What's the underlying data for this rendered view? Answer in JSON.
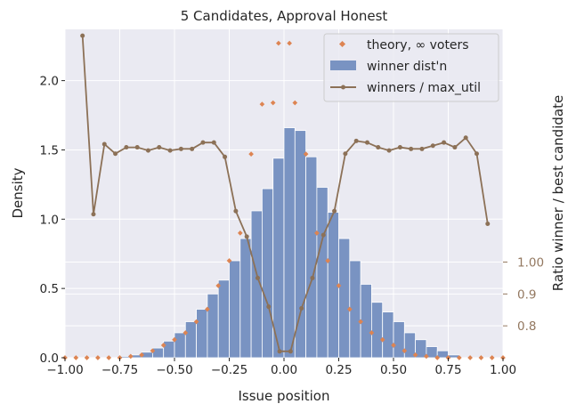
{
  "chart_data": {
    "type": "bar",
    "title": "5 Candidates, Approval Honest",
    "xlabel": "Issue position",
    "ylabel": "Density",
    "y2label": "Ratio winner / best candidate",
    "xlim": [
      -1.0,
      1.0
    ],
    "ylim": [
      0,
      2.37
    ],
    "y2lim": [
      0.7,
      1.73
    ],
    "x_ticks": [
      "−1.00",
      "−0.75",
      "−0.50",
      "−0.25",
      "0.00",
      "0.25",
      "0.50",
      "0.75",
      "1.00"
    ],
    "x_tick_values": [
      -1.0,
      -0.75,
      -0.5,
      -0.25,
      0.0,
      0.25,
      0.5,
      0.75,
      1.0
    ],
    "y_ticks": [
      "0.0",
      "0.5",
      "1.0",
      "1.5",
      "2.0"
    ],
    "y_tick_values": [
      0.0,
      0.5,
      1.0,
      1.5,
      2.0
    ],
    "y2_ticks": [
      "0.8",
      "0.9",
      "1.00"
    ],
    "y2_tick_values": [
      0.8,
      0.9,
      1.0
    ],
    "grid": true,
    "legend_position": "top-right",
    "colors": {
      "background": "#eaeaf2",
      "grid": "#ffffff",
      "bars": "#7993c2",
      "theory": "#dd8452",
      "ratio_line": "#8c7157",
      "right_axis_text": "#937860",
      "text": "#262626"
    },
    "histogram": {
      "name": "winner dist'n",
      "bin_edges": [
        -1.0,
        -0.95,
        -0.9,
        -0.85,
        -0.8,
        -0.75,
        -0.7,
        -0.65,
        -0.6,
        -0.55,
        -0.5,
        -0.45,
        -0.4,
        -0.35,
        -0.3,
        -0.25,
        -0.2,
        -0.15,
        -0.1,
        -0.05,
        0.0,
        0.05,
        0.1,
        0.15,
        0.2,
        0.25,
        0.3,
        0.35,
        0.4,
        0.45,
        0.5,
        0.55,
        0.6,
        0.65,
        0.7,
        0.75,
        0.8,
        0.85,
        0.9,
        0.95,
        1.0
      ],
      "values": [
        0.0,
        0.0,
        0.0,
        0.0,
        0.0,
        0.01,
        0.02,
        0.04,
        0.07,
        0.12,
        0.18,
        0.26,
        0.35,
        0.46,
        0.56,
        0.7,
        0.86,
        1.06,
        1.22,
        1.44,
        1.66,
        1.64,
        1.45,
        1.23,
        1.05,
        0.86,
        0.7,
        0.53,
        0.4,
        0.33,
        0.26,
        0.18,
        0.13,
        0.08,
        0.05,
        0.02,
        0.0,
        0.0,
        0.0,
        0.0
      ]
    },
    "series": [
      {
        "name": "theory, ∞ voters",
        "type": "scatter",
        "x": [
          -1.0,
          -0.95,
          -0.9,
          -0.85,
          -0.8,
          -0.75,
          -0.7,
          -0.65,
          -0.6,
          -0.55,
          -0.5,
          -0.45,
          -0.4,
          -0.35,
          -0.3,
          -0.25,
          -0.2,
          -0.15,
          -0.1,
          -0.05,
          -0.025,
          0.025,
          0.05,
          0.1,
          0.15,
          0.2,
          0.25,
          0.3,
          0.35,
          0.4,
          0.45,
          0.5,
          0.55,
          0.6,
          0.65,
          0.7,
          0.75,
          0.8,
          0.85,
          0.9,
          0.95,
          1.0
        ],
        "y": [
          0.0,
          0.0,
          0.0,
          0.0,
          0.0,
          0.0,
          0.01,
          0.02,
          0.05,
          0.09,
          0.13,
          0.18,
          0.26,
          0.35,
          0.52,
          0.7,
          0.9,
          1.47,
          1.83,
          1.84,
          2.27,
          2.27,
          1.84,
          1.47,
          0.9,
          0.7,
          0.52,
          0.35,
          0.26,
          0.18,
          0.13,
          0.09,
          0.05,
          0.02,
          0.01,
          0.0,
          0.0,
          0.0,
          0.0,
          0.0,
          0.0,
          0.0
        ]
      },
      {
        "name": "winners / max_util",
        "type": "line",
        "axis": "right",
        "x": [
          -0.92,
          -0.87,
          -0.82,
          -0.77,
          -0.72,
          -0.67,
          -0.62,
          -0.57,
          -0.52,
          -0.47,
          -0.42,
          -0.37,
          -0.32,
          -0.27,
          -0.22,
          -0.17,
          -0.12,
          -0.07,
          -0.02,
          0.03,
          0.08,
          0.13,
          0.18,
          0.23,
          0.28,
          0.33,
          0.38,
          0.43,
          0.48,
          0.53,
          0.58,
          0.63,
          0.68,
          0.73,
          0.78,
          0.83,
          0.88,
          0.93
        ],
        "y": [
          1.71,
          1.15,
          1.37,
          1.34,
          1.36,
          1.36,
          1.35,
          1.36,
          1.35,
          1.355,
          1.355,
          1.375,
          1.375,
          1.33,
          1.16,
          1.08,
          0.95,
          0.86,
          0.72,
          0.72,
          0.855,
          0.95,
          1.085,
          1.16,
          1.34,
          1.38,
          1.375,
          1.36,
          1.35,
          1.36,
          1.355,
          1.355,
          1.365,
          1.375,
          1.36,
          1.39,
          1.34,
          1.12
        ]
      }
    ]
  }
}
